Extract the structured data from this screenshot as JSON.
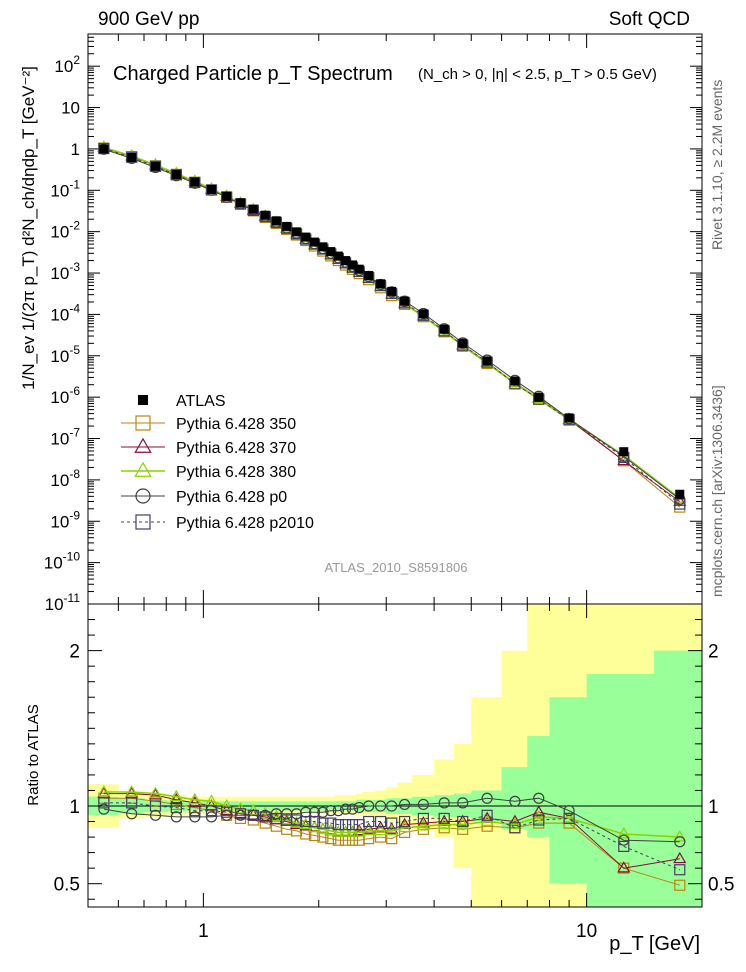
{
  "header": {
    "left": "900 GeV pp",
    "right": "Soft QCD"
  },
  "side_labels": {
    "top": "Rivet 3.1.10, ≥ 2.2M events",
    "bottom": "mcplots.cern.ch [arXiv:1306.3436]"
  },
  "chart_data": [
    {
      "type": "scatter",
      "title": "Charged Particle p_T Spectrum",
      "subtitle": "(N_ch > 0, |η| < 2.5, p_T > 0.5 GeV)",
      "watermark": "ATLAS_2010_S8591806",
      "ylabel": "1/N_ev 1/(2π p_T) d²N_ch/dηdp_T [GeV⁻²]",
      "xscale": "log",
      "yscale": "log",
      "xlim": [
        0.5,
        20
      ],
      "ylim": [
        1e-11,
        600
      ],
      "legend_position": "lower-left",
      "x": [
        0.55,
        0.65,
        0.75,
        0.85,
        0.95,
        1.05,
        1.15,
        1.25,
        1.35,
        1.45,
        1.55,
        1.65,
        1.75,
        1.85,
        1.95,
        2.05,
        2.15,
        2.25,
        2.35,
        2.45,
        2.55,
        2.7,
        2.9,
        3.1,
        3.35,
        3.75,
        4.25,
        4.75,
        5.5,
        6.5,
        7.5,
        9.0,
        12.5,
        17.5
      ],
      "series": [
        {
          "name": "ATLAS",
          "color": "#000000",
          "marker": "filled-square",
          "values": [
            1.0,
            0.62,
            0.38,
            0.24,
            0.158,
            0.105,
            0.072,
            0.05,
            0.035,
            0.025,
            0.0183,
            0.0134,
            0.0099,
            0.0074,
            0.0056,
            0.0043,
            0.0033,
            0.00257,
            0.002,
            0.00157,
            0.00124,
            0.00087,
            0.00055,
            0.00036,
            0.00021,
            0.000103,
            4.4e-05,
            2e-05,
            7.5e-06,
            2.45e-06,
            9.9e-07,
            3.15e-07,
            4.8e-08,
            4.5e-09
          ]
        },
        {
          "name": "Pythia 6.428 350",
          "color": "#b8860b",
          "marker": "open-square",
          "style": "solid",
          "values": [
            1.05,
            0.65,
            0.39,
            0.243,
            0.157,
            0.102,
            0.068,
            0.046,
            0.0318,
            0.0222,
            0.0159,
            0.0114,
            0.0083,
            0.0061,
            0.0045,
            0.0034,
            0.0026,
            0.002,
            0.00156,
            0.00123,
            0.00097,
            0.00069,
            0.00044,
            0.000285,
            0.000175,
            8.8e-05,
            3.8e-05,
            1.7e-05,
            6.5e-06,
            2.1e-06,
            8.8e-07,
            2.8e-07,
            2.9e-08,
            2.2e-09
          ]
        },
        {
          "name": "Pythia 6.428 370",
          "color": "#8b0a3c",
          "marker": "open-triangle",
          "style": "solid",
          "values": [
            1.08,
            0.67,
            0.405,
            0.25,
            0.162,
            0.105,
            0.07,
            0.048,
            0.033,
            0.0232,
            0.0166,
            0.012,
            0.0087,
            0.0064,
            0.0048,
            0.0036,
            0.00275,
            0.00213,
            0.00167,
            0.00131,
            0.00104,
            0.00074,
            0.00047,
            0.000305,
            0.000185,
            9.2e-05,
            3.9e-05,
            1.8e-05,
            6.9e-06,
            2.2e-06,
            9.5e-07,
            2.9e-07,
            2.9e-08,
            3e-09
          ]
        },
        {
          "name": "Pythia 6.428 380",
          "color": "#8ad400",
          "marker": "open-triangle",
          "style": "solid",
          "values": [
            1.09,
            0.675,
            0.41,
            0.255,
            0.165,
            0.108,
            0.072,
            0.049,
            0.034,
            0.0238,
            0.017,
            0.0122,
            0.0088,
            0.0065,
            0.0048,
            0.0036,
            0.00275,
            0.00212,
            0.00165,
            0.0013,
            0.00103,
            0.00073,
            0.00046,
            0.0003,
            0.00018,
            9e-05,
            3.9e-05,
            1.75e-05,
            6.7e-06,
            2.2e-06,
            9.2e-07,
            2.9e-07,
            3.9e-08,
            3.6e-09
          ]
        },
        {
          "name": "Pythia 6.428 p0",
          "color": "#404040",
          "marker": "open-circle",
          "style": "solid",
          "values": [
            0.98,
            0.59,
            0.355,
            0.225,
            0.148,
            0.1,
            0.068,
            0.047,
            0.033,
            0.0234,
            0.0169,
            0.0123,
            0.0091,
            0.0068,
            0.0051,
            0.0039,
            0.003,
            0.00233,
            0.00183,
            0.00144,
            0.00115,
            0.00083,
            0.00053,
            0.00035,
            0.00021,
            0.000105,
            4.5e-05,
            2.05e-05,
            7.9e-06,
            2.55e-06,
            1.05e-06,
            3e-07,
            3.7e-08,
            3.4e-09
          ]
        },
        {
          "name": "Pythia 6.428 p2010",
          "color": "#404060",
          "marker": "open-square",
          "style": "dashed",
          "values": [
            1.02,
            0.63,
            0.38,
            0.237,
            0.154,
            0.102,
            0.069,
            0.047,
            0.0328,
            0.0232,
            0.0167,
            0.0121,
            0.0089,
            0.0066,
            0.005,
            0.0038,
            0.0029,
            0.00225,
            0.00176,
            0.00138,
            0.00109,
            0.00078,
            0.0005,
            0.00032,
            0.00019,
            9.5e-05,
            4e-05,
            1.8e-05,
            7e-06,
            2.1e-06,
            9e-07,
            2.85e-07,
            3.5e-08,
            2.6e-09
          ]
        }
      ]
    },
    {
      "type": "line",
      "ylabel": "Ratio to ATLAS",
      "xlabel": "p_T [GeV]",
      "xscale": "log",
      "xlim": [
        0.5,
        20
      ],
      "ylim": [
        0.35,
        2.3
      ],
      "yticks": [
        "0.5",
        "1",
        "2"
      ],
      "xticks": [
        "1",
        "10"
      ],
      "bands": {
        "x_edges": [
          0.5,
          0.6,
          0.7,
          0.8,
          0.9,
          1.0,
          1.1,
          1.2,
          1.3,
          1.4,
          1.5,
          1.6,
          1.7,
          1.8,
          1.9,
          2.0,
          2.1,
          2.2,
          2.3,
          2.4,
          2.5,
          2.6,
          2.8,
          3.0,
          3.2,
          3.5,
          4.0,
          4.5,
          5.0,
          6.0,
          7.0,
          8.0,
          10.0,
          15.0,
          20.0
        ],
        "stat_lo": [
          0.94,
          0.95,
          0.96,
          0.965,
          0.97,
          0.97,
          0.97,
          0.97,
          0.97,
          0.97,
          0.97,
          0.97,
          0.97,
          0.97,
          0.97,
          0.97,
          0.97,
          0.97,
          0.97,
          0.97,
          0.96,
          0.96,
          0.96,
          0.95,
          0.95,
          0.94,
          0.93,
          0.93,
          0.9,
          0.85,
          0.8,
          0.5,
          0.35,
          0.35
        ],
        "stat_hi": [
          1.06,
          1.05,
          1.04,
          1.035,
          1.03,
          1.03,
          1.03,
          1.03,
          1.03,
          1.03,
          1.03,
          1.03,
          1.03,
          1.03,
          1.03,
          1.03,
          1.03,
          1.03,
          1.03,
          1.03,
          1.04,
          1.04,
          1.04,
          1.05,
          1.05,
          1.06,
          1.07,
          1.08,
          1.1,
          1.25,
          1.45,
          1.7,
          1.85,
          2.0
        ],
        "syst_lo": [
          0.86,
          0.92,
          0.93,
          0.94,
          0.95,
          0.95,
          0.95,
          0.95,
          0.95,
          0.95,
          0.95,
          0.95,
          0.95,
          0.95,
          0.95,
          0.95,
          0.95,
          0.95,
          0.95,
          0.95,
          0.94,
          0.93,
          0.92,
          0.9,
          0.88,
          0.85,
          0.8,
          0.6,
          0.35,
          0.35,
          0.35,
          0.35,
          0.35,
          0.35
        ],
        "syst_hi": [
          1.14,
          1.09,
          1.08,
          1.07,
          1.06,
          1.06,
          1.06,
          1.06,
          1.06,
          1.06,
          1.06,
          1.06,
          1.06,
          1.06,
          1.06,
          1.06,
          1.06,
          1.07,
          1.07,
          1.07,
          1.08,
          1.09,
          1.1,
          1.12,
          1.15,
          1.2,
          1.3,
          1.4,
          1.7,
          2.0,
          2.3,
          2.3,
          2.3,
          2.3
        ]
      },
      "series": [
        {
          "name": "Pythia 6.428 350",
          "color": "#b8860b",
          "values": [
            1.05,
            1.05,
            1.03,
            1.01,
            0.99,
            0.97,
            0.94,
            0.92,
            0.91,
            0.89,
            0.87,
            0.85,
            0.84,
            0.82,
            0.81,
            0.8,
            0.79,
            0.78,
            0.78,
            0.78,
            0.78,
            0.79,
            0.8,
            0.79,
            0.83,
            0.85,
            0.86,
            0.85,
            0.87,
            0.86,
            0.89,
            0.89,
            0.6,
            0.49
          ]
        },
        {
          "name": "Pythia 6.428 370",
          "color": "#8b0a3c",
          "values": [
            1.08,
            1.08,
            1.07,
            1.04,
            1.02,
            1.0,
            0.97,
            0.95,
            0.94,
            0.93,
            0.91,
            0.9,
            0.88,
            0.87,
            0.86,
            0.85,
            0.84,
            0.83,
            0.83,
            0.83,
            0.84,
            0.85,
            0.86,
            0.85,
            0.88,
            0.89,
            0.9,
            0.9,
            0.92,
            0.9,
            0.96,
            0.92,
            0.6,
            0.66
          ]
        },
        {
          "name": "Pythia 6.428 380",
          "color": "#8ad400",
          "values": [
            1.09,
            1.09,
            1.08,
            1.06,
            1.04,
            1.03,
            1.0,
            0.98,
            0.97,
            0.95,
            0.93,
            0.91,
            0.89,
            0.88,
            0.86,
            0.85,
            0.84,
            0.83,
            0.83,
            0.83,
            0.83,
            0.84,
            0.84,
            0.84,
            0.86,
            0.87,
            0.88,
            0.88,
            0.9,
            0.88,
            0.93,
            0.92,
            0.82,
            0.8
          ]
        },
        {
          "name": "Pythia 6.428 p0",
          "color": "#404040",
          "values": [
            0.98,
            0.95,
            0.94,
            0.93,
            0.93,
            0.93,
            0.94,
            0.94,
            0.94,
            0.94,
            0.95,
            0.95,
            0.95,
            0.96,
            0.96,
            0.96,
            0.97,
            0.97,
            0.98,
            0.98,
            0.99,
            1.0,
            1.0,
            1.0,
            1.01,
            1.01,
            1.02,
            1.02,
            1.05,
            1.03,
            1.05,
            0.97,
            0.78,
            0.77
          ]
        },
        {
          "name": "Pythia 6.428 p2010",
          "color": "#404060",
          "values": [
            1.02,
            1.02,
            1.0,
            0.99,
            0.97,
            0.97,
            0.96,
            0.95,
            0.94,
            0.93,
            0.92,
            0.91,
            0.91,
            0.9,
            0.9,
            0.89,
            0.89,
            0.88,
            0.88,
            0.88,
            0.88,
            0.9,
            0.9,
            0.89,
            0.9,
            0.92,
            0.92,
            0.9,
            0.94,
            0.86,
            0.91,
            0.92,
            0.74,
            0.59
          ]
        }
      ]
    }
  ]
}
